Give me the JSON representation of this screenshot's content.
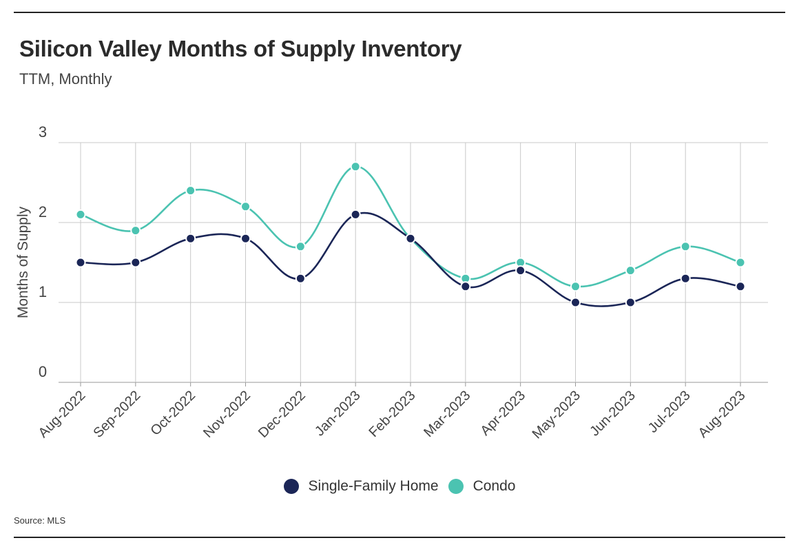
{
  "title": "Silicon Valley Months of Supply Inventory",
  "subtitle": "TTM, Monthly",
  "source": "Source:  MLS",
  "colors": {
    "sfh": "#1b2657",
    "condo": "#4bc3b1",
    "grid": "#c8c8c8"
  },
  "legend": [
    {
      "label": "Single-Family Home",
      "color": "#1b2657"
    },
    {
      "label": "Condo",
      "color": "#4bc3b1"
    }
  ],
  "chart_data": {
    "type": "line",
    "title": "Silicon Valley Months of Supply Inventory",
    "subtitle": "TTM, Monthly",
    "xlabel": "",
    "ylabel": "Months of Supply",
    "ylim": [
      0,
      3
    ],
    "yticks": [
      0,
      1,
      2,
      3
    ],
    "grid": true,
    "legend_position": "bottom-center",
    "categories": [
      "Aug-2022",
      "Sep-2022",
      "Oct-2022",
      "Nov-2022",
      "Dec-2022",
      "Jan-2023",
      "Feb-2023",
      "Mar-2023",
      "Apr-2023",
      "May-2023",
      "Jun-2023",
      "Jul-2023",
      "Aug-2023"
    ],
    "series": [
      {
        "name": "Single-Family Home",
        "color": "#1b2657",
        "values": [
          1.5,
          1.5,
          1.8,
          1.8,
          1.3,
          2.1,
          1.8,
          1.2,
          1.4,
          1.0,
          1.0,
          1.3,
          1.2
        ]
      },
      {
        "name": "Condo",
        "color": "#4bc3b1",
        "values": [
          2.1,
          1.9,
          2.4,
          2.2,
          1.7,
          2.7,
          1.8,
          1.3,
          1.5,
          1.2,
          1.4,
          1.7,
          1.5
        ]
      }
    ]
  }
}
